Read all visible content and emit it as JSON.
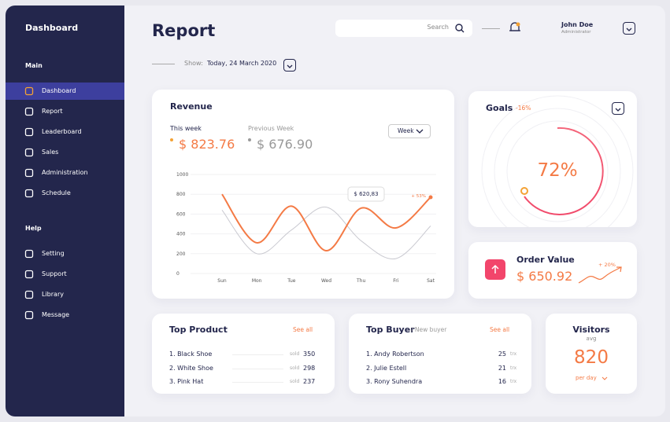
{
  "sidebar": {
    "title": "Dashboard",
    "active_item": 0,
    "sections": [
      {
        "heading": "Main",
        "items": [
          "Dashboard",
          "Report",
          "Leaderboard",
          "Sales",
          "Administration",
          "Schedule"
        ]
      },
      {
        "heading": "Help",
        "items": [
          "Setting",
          "Support",
          "Library",
          "Message"
        ]
      }
    ]
  },
  "header": {
    "title": "Report",
    "search_placeholder": "Search",
    "user_name": "John Doe",
    "user_role": "Administrator",
    "show_label": "Show:",
    "show_value": "Today, 24 March 2020"
  },
  "revenue": {
    "title": "Revenue",
    "this_week_label": "This week",
    "this_week_value": "$ 823.76",
    "previous_week_label": "Previous Week",
    "previous_week_value": "$ 676.90",
    "period": "Week",
    "tooltip": "$ 620,83",
    "change": "+ 53%",
    "categories": [
      "Sun",
      "Mon",
      "Tue",
      "Wed",
      "Thu",
      "Fri",
      "Sat"
    ],
    "ylim": [
      0,
      1000
    ],
    "yticks": [
      0,
      200,
      400,
      600,
      800,
      1000
    ],
    "series": [
      {
        "color": "#c9c9d0",
        "values": [
          640,
          200,
          440,
          670,
          330,
          150,
          480
        ]
      },
      {
        "color": "#f47a45",
        "values": [
          800,
          310,
          680,
          230,
          660,
          460,
          770
        ]
      }
    ]
  },
  "goals": {
    "title": "Goals",
    "change": "-16%",
    "percent": "72%"
  },
  "order_value": {
    "title": "Order Value",
    "value": "$ 650.92",
    "change": "+ 20%"
  },
  "top_product": {
    "title": "Top Product",
    "link": "See all",
    "rows": [
      {
        "name": "1. Black Shoe",
        "unit": "sold",
        "value": 350
      },
      {
        "name": "2. White Shoe",
        "unit": "sold",
        "value": 298
      },
      {
        "name": "3. Pink Hat",
        "unit": "sold",
        "value": 237
      }
    ]
  },
  "top_buyer": {
    "title": "Top Buyer",
    "subtitle": "/ New buyer",
    "link": "See all",
    "rows": [
      {
        "name": "1. Andy Robertson",
        "value": 25,
        "unit": "trx"
      },
      {
        "name": "2. Julie Estell",
        "value": 21,
        "unit": "trx"
      },
      {
        "name": "3. Rony Suhendra",
        "value": 16,
        "unit": "trx"
      }
    ]
  },
  "visitors": {
    "title": "Visitors",
    "subtitle": "avg",
    "value": 820,
    "period": "per day"
  }
}
